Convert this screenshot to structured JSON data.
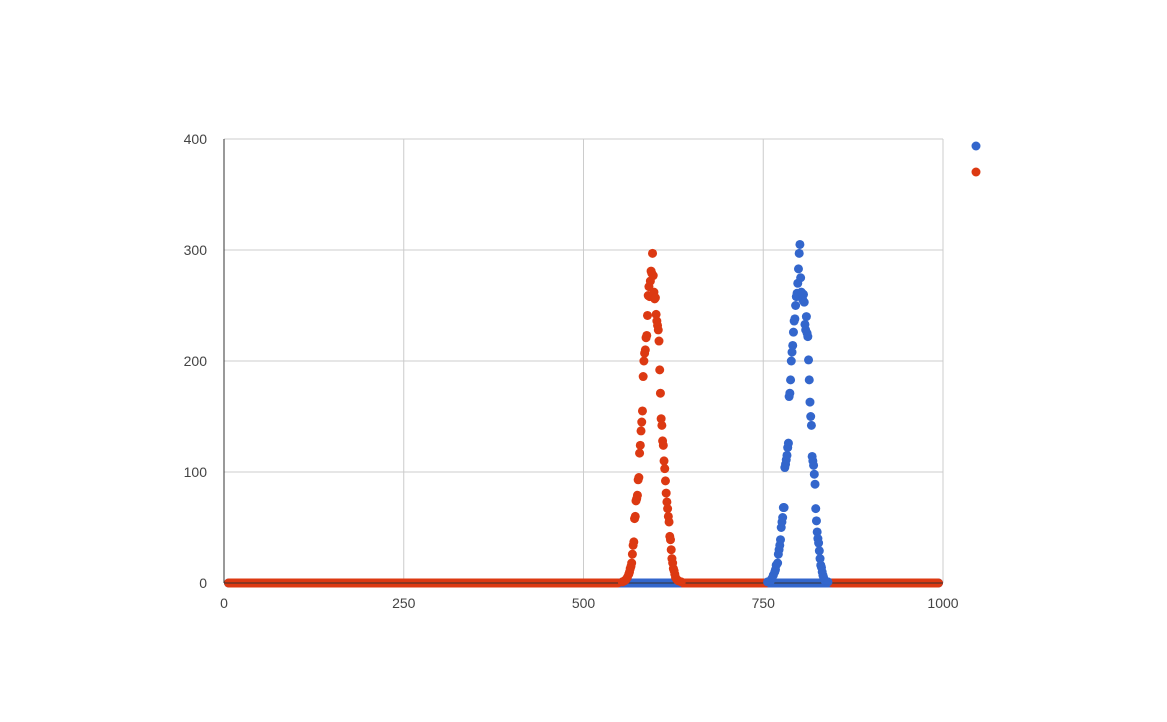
{
  "chart_data": {
    "type": "scatter",
    "title": "",
    "xlabel": "",
    "ylabel": "",
    "xlim": [
      0,
      1000
    ],
    "ylim": [
      0,
      400
    ],
    "grid": true,
    "legend_position": "right",
    "x_ticks": [
      0,
      250,
      500,
      750,
      1000
    ],
    "x_tick_labels": [
      "0",
      "250",
      "500",
      "750",
      "1000"
    ],
    "y_ticks": [
      0,
      100,
      200,
      300,
      400
    ],
    "y_tick_labels": [
      "0",
      "100",
      "200",
      "300",
      "400"
    ],
    "series": [
      {
        "color": "#3366cc",
        "points": [
          [
            756,
            1
          ],
          [
            760,
            2
          ],
          [
            762,
            4
          ],
          [
            764,
            7
          ],
          [
            766,
            10
          ],
          [
            767,
            12
          ],
          [
            768,
            16
          ],
          [
            770,
            18
          ],
          [
            771,
            26
          ],
          [
            772,
            30
          ],
          [
            773,
            34
          ],
          [
            774,
            39
          ],
          [
            775,
            50
          ],
          [
            776,
            55
          ],
          [
            777,
            59
          ],
          [
            778,
            68
          ],
          [
            779,
            68
          ],
          [
            780,
            104
          ],
          [
            781,
            107
          ],
          [
            782,
            111
          ],
          [
            783,
            115
          ],
          [
            784,
            122
          ],
          [
            785,
            126
          ],
          [
            786,
            168
          ],
          [
            787,
            171
          ],
          [
            788,
            183
          ],
          [
            789,
            200
          ],
          [
            790,
            208
          ],
          [
            791,
            214
          ],
          [
            792,
            226
          ],
          [
            793,
            236
          ],
          [
            794,
            238
          ],
          [
            795,
            250
          ],
          [
            796,
            258
          ],
          [
            797,
            261
          ],
          [
            798,
            270
          ],
          [
            799,
            283
          ],
          [
            800,
            297
          ],
          [
            801,
            305
          ],
          [
            802,
            275
          ],
          [
            803,
            262
          ],
          [
            804,
            261
          ],
          [
            805,
            255
          ],
          [
            806,
            260
          ],
          [
            807,
            253
          ],
          [
            808,
            233
          ],
          [
            809,
            228
          ],
          [
            810,
            240
          ],
          [
            811,
            225
          ],
          [
            812,
            222
          ],
          [
            813,
            201
          ],
          [
            814,
            183
          ],
          [
            815,
            163
          ],
          [
            816,
            150
          ],
          [
            817,
            142
          ],
          [
            818,
            114
          ],
          [
            819,
            110
          ],
          [
            820,
            106
          ],
          [
            821,
            98
          ],
          [
            822,
            89
          ],
          [
            823,
            67
          ],
          [
            824,
            56
          ],
          [
            825,
            46
          ],
          [
            826,
            40
          ],
          [
            827,
            36
          ],
          [
            828,
            29
          ],
          [
            829,
            22
          ],
          [
            830,
            16
          ],
          [
            831,
            14
          ],
          [
            832,
            10
          ],
          [
            833,
            7
          ],
          [
            834,
            5
          ],
          [
            836,
            2
          ],
          [
            840,
            1
          ]
        ]
      },
      {
        "color": "#dc3912",
        "points": [
          [
            554,
            1
          ],
          [
            557,
            2
          ],
          [
            559,
            3
          ],
          [
            561,
            5
          ],
          [
            563,
            8
          ],
          [
            564,
            10
          ],
          [
            565,
            13
          ],
          [
            566,
            15
          ],
          [
            567,
            18
          ],
          [
            568,
            26
          ],
          [
            569,
            34
          ],
          [
            570,
            37
          ],
          [
            571,
            58
          ],
          [
            572,
            60
          ],
          [
            573,
            74
          ],
          [
            574,
            76
          ],
          [
            575,
            79
          ],
          [
            576,
            93
          ],
          [
            577,
            95
          ],
          [
            578,
            117
          ],
          [
            579,
            124
          ],
          [
            580,
            137
          ],
          [
            581,
            145
          ],
          [
            582,
            155
          ],
          [
            583,
            186
          ],
          [
            584,
            200
          ],
          [
            585,
            207
          ],
          [
            586,
            210
          ],
          [
            587,
            221
          ],
          [
            588,
            223
          ],
          [
            589,
            241
          ],
          [
            590,
            259
          ],
          [
            591,
            267
          ],
          [
            592,
            258
          ],
          [
            593,
            272
          ],
          [
            594,
            281
          ],
          [
            595,
            279
          ],
          [
            596,
            297
          ],
          [
            597,
            277
          ],
          [
            598,
            262
          ],
          [
            599,
            256
          ],
          [
            600,
            257
          ],
          [
            601,
            242
          ],
          [
            602,
            236
          ],
          [
            603,
            232
          ],
          [
            604,
            228
          ],
          [
            605,
            218
          ],
          [
            606,
            192
          ],
          [
            607,
            171
          ],
          [
            608,
            148
          ],
          [
            609,
            142
          ],
          [
            610,
            128
          ],
          [
            611,
            124
          ],
          [
            612,
            110
          ],
          [
            613,
            103
          ],
          [
            614,
            92
          ],
          [
            615,
            81
          ],
          [
            616,
            73
          ],
          [
            617,
            67
          ],
          [
            618,
            60
          ],
          [
            619,
            55
          ],
          [
            620,
            42
          ],
          [
            621,
            39
          ],
          [
            622,
            30
          ],
          [
            623,
            22
          ],
          [
            624,
            18
          ],
          [
            625,
            13
          ],
          [
            626,
            11
          ],
          [
            627,
            8
          ],
          [
            628,
            5
          ],
          [
            630,
            3
          ],
          [
            632,
            2
          ],
          [
            636,
            1
          ]
        ]
      }
    ]
  }
}
